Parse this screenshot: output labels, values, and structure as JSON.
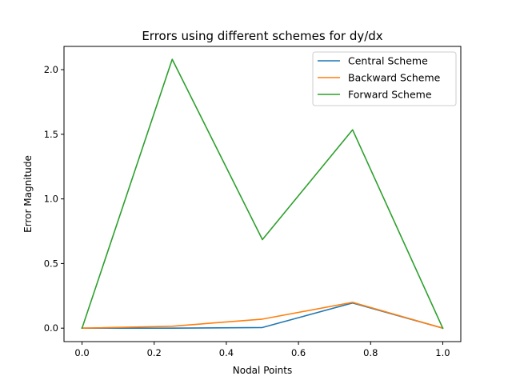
{
  "chart_data": {
    "type": "line",
    "title": "Errors using different schemes for dy/dx",
    "xlabel": "Nodal Points",
    "ylabel": "Error Magnitude",
    "x": [
      0.0,
      0.25,
      0.5,
      0.75,
      1.0
    ],
    "xlim": [
      -0.05,
      1.05
    ],
    "ylim": [
      -0.104,
      2.18
    ],
    "xticks": [
      0.0,
      0.2,
      0.4,
      0.6,
      0.8,
      1.0
    ],
    "xtick_labels": [
      "0.0",
      "0.2",
      "0.4",
      "0.6",
      "0.8",
      "1.0"
    ],
    "yticks": [
      0.0,
      0.5,
      1.0,
      1.5,
      2.0
    ],
    "ytick_labels": [
      "0.0",
      "0.5",
      "1.0",
      "1.5",
      "2.0"
    ],
    "grid": false,
    "legend_position": "top-right",
    "series": [
      {
        "name": "Central Scheme",
        "color": "#1f77b4",
        "values": [
          0.0,
          0.0,
          0.005,
          0.195,
          0.0
        ]
      },
      {
        "name": "Backward Scheme",
        "color": "#ff7f0e",
        "values": [
          0.0,
          0.015,
          0.07,
          0.2,
          0.0
        ]
      },
      {
        "name": "Forward Scheme",
        "color": "#2ca02c",
        "values": [
          0.0,
          2.08,
          0.685,
          1.535,
          0.0
        ]
      }
    ]
  }
}
